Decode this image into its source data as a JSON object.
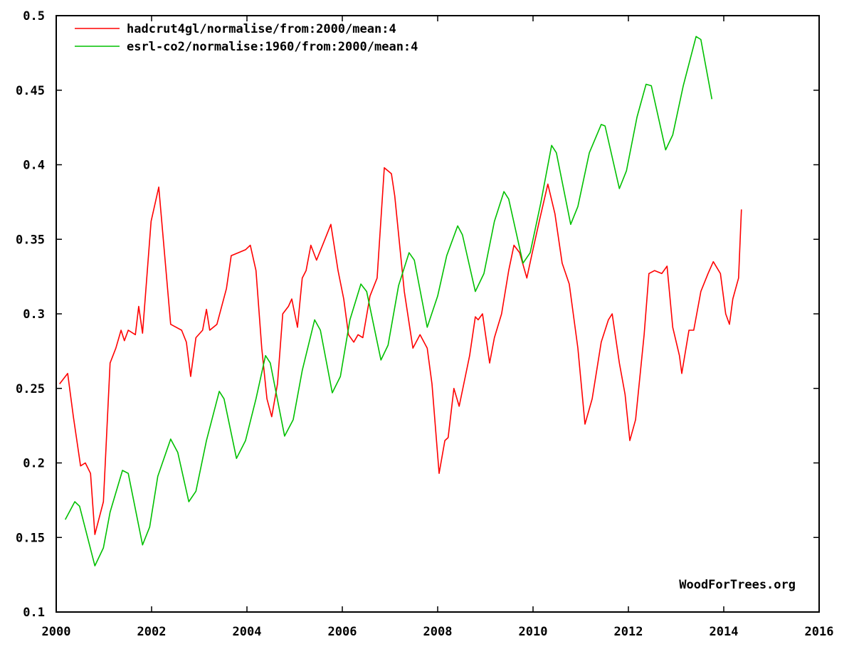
{
  "chart_data": {
    "type": "line",
    "title": "",
    "xlabel": "",
    "ylabel": "",
    "xlim": [
      2000,
      2016
    ],
    "ylim": [
      0.1,
      0.5
    ],
    "grid": false,
    "legend_position": "top-left",
    "x_ticks": [
      "2000",
      "2002",
      "2004",
      "2006",
      "2008",
      "2010",
      "2012",
      "2014",
      "2016"
    ],
    "y_ticks": [
      "0.1",
      "0.15",
      "0.2",
      "0.25",
      "0.3",
      "0.35",
      "0.4",
      "0.45",
      "0.5"
    ],
    "watermark": "WoodForTrees.org",
    "series": [
      {
        "name": "hadcrut4gl/normalise/from:2000/mean:4",
        "color": "#ff0000",
        "x": [
          2000.07,
          2000.24,
          2000.36,
          2000.51,
          2000.61,
          2000.72,
          2000.81,
          2000.99,
          2001.13,
          2001.25,
          2001.36,
          2001.43,
          2001.51,
          2001.66,
          2001.73,
          2001.81,
          2001.99,
          2002.15,
          2002.4,
          2002.63,
          2002.73,
          2002.82,
          2002.93,
          2003.07,
          2003.15,
          2003.22,
          2003.37,
          2003.57,
          2003.67,
          2003.82,
          2003.97,
          2004.07,
          2004.19,
          2004.31,
          2004.42,
          2004.52,
          2004.64,
          2004.75,
          2004.87,
          2004.94,
          2005.06,
          2005.16,
          2005.24,
          2005.34,
          2005.46,
          2005.61,
          2005.76,
          2005.91,
          2006.03,
          2006.13,
          2006.24,
          2006.33,
          2006.43,
          2006.58,
          2006.73,
          2006.88,
          2007.03,
          2007.1,
          2007.3,
          2007.48,
          2007.63,
          2007.78,
          2007.88,
          2008.03,
          2008.15,
          2008.22,
          2008.34,
          2008.45,
          2008.67,
          2008.79,
          2008.85,
          2008.94,
          2009.09,
          2009.19,
          2009.34,
          2009.49,
          2009.6,
          2009.72,
          2009.87,
          2009.97,
          2010.13,
          2010.31,
          2010.46,
          2010.61,
          2010.76,
          2010.94,
          2011.09,
          2011.24,
          2011.43,
          2011.58,
          2011.66,
          2011.81,
          2011.93,
          2012.03,
          2012.15,
          2012.33,
          2012.43,
          2012.55,
          2012.7,
          2012.81,
          2012.93,
          2013.07,
          2013.12,
          2013.27,
          2013.37,
          2013.52,
          2013.67,
          2013.78,
          2013.93,
          2014.04,
          2014.12,
          2014.19,
          2014.31,
          2014.37
        ],
        "y": [
          0.253,
          0.26,
          0.231,
          0.198,
          0.2,
          0.193,
          0.152,
          0.174,
          0.267,
          0.277,
          0.289,
          0.282,
          0.289,
          0.286,
          0.305,
          0.287,
          0.362,
          0.385,
          0.293,
          0.289,
          0.281,
          0.258,
          0.284,
          0.289,
          0.303,
          0.289,
          0.293,
          0.317,
          0.339,
          0.341,
          0.343,
          0.346,
          0.329,
          0.277,
          0.243,
          0.231,
          0.253,
          0.3,
          0.305,
          0.31,
          0.291,
          0.324,
          0.329,
          0.346,
          0.336,
          0.348,
          0.36,
          0.329,
          0.31,
          0.286,
          0.281,
          0.286,
          0.284,
          0.312,
          0.324,
          0.398,
          0.394,
          0.379,
          0.315,
          0.277,
          0.286,
          0.277,
          0.253,
          0.193,
          0.215,
          0.217,
          0.25,
          0.238,
          0.272,
          0.298,
          0.296,
          0.3,
          0.267,
          0.284,
          0.3,
          0.329,
          0.346,
          0.341,
          0.324,
          0.339,
          0.362,
          0.387,
          0.367,
          0.334,
          0.32,
          0.277,
          0.226,
          0.243,
          0.281,
          0.296,
          0.3,
          0.267,
          0.246,
          0.215,
          0.229,
          0.286,
          0.327,
          0.329,
          0.327,
          0.332,
          0.291,
          0.272,
          0.26,
          0.289,
          0.289,
          0.315,
          0.327,
          0.335,
          0.327,
          0.3,
          0.293,
          0.31,
          0.324,
          0.37
        ]
      },
      {
        "name": "esrl-co2/normalise:1960/from:2000/mean:4",
        "color": "#00c000",
        "x": [
          2000.19,
          2000.39,
          2000.49,
          2000.81,
          2000.99,
          2001.13,
          2001.39,
          2001.51,
          2001.81,
          2001.96,
          2002.13,
          2002.4,
          2002.55,
          2002.78,
          2002.93,
          2003.15,
          2003.42,
          2003.52,
          2003.78,
          2003.97,
          2004.19,
          2004.39,
          2004.49,
          2004.79,
          2004.97,
          2005.16,
          2005.42,
          2005.54,
          2005.79,
          2005.96,
          2006.16,
          2006.39,
          2006.51,
          2006.81,
          2006.96,
          2007.18,
          2007.4,
          2007.51,
          2007.78,
          2008.0,
          2008.19,
          2008.42,
          2008.52,
          2008.79,
          2008.97,
          2009.19,
          2009.39,
          2009.49,
          2009.79,
          2009.94,
          2010.16,
          2010.39,
          2010.49,
          2010.79,
          2010.94,
          2011.18,
          2011.43,
          2011.51,
          2011.81,
          2011.96,
          2012.18,
          2012.37,
          2012.48,
          2012.78,
          2012.93,
          2013.15,
          2013.42,
          2013.52,
          2013.75
        ],
        "y": [
          0.162,
          0.174,
          0.171,
          0.131,
          0.143,
          0.167,
          0.195,
          0.193,
          0.145,
          0.157,
          0.191,
          0.216,
          0.207,
          0.174,
          0.181,
          0.215,
          0.248,
          0.243,
          0.203,
          0.215,
          0.243,
          0.272,
          0.267,
          0.218,
          0.229,
          0.262,
          0.296,
          0.289,
          0.247,
          0.258,
          0.296,
          0.32,
          0.315,
          0.269,
          0.279,
          0.319,
          0.341,
          0.336,
          0.291,
          0.312,
          0.339,
          0.359,
          0.353,
          0.315,
          0.327,
          0.362,
          0.382,
          0.377,
          0.334,
          0.341,
          0.374,
          0.413,
          0.408,
          0.36,
          0.372,
          0.408,
          0.427,
          0.426,
          0.384,
          0.396,
          0.432,
          0.454,
          0.453,
          0.41,
          0.42,
          0.453,
          0.486,
          0.484,
          0.444
        ]
      }
    ]
  }
}
